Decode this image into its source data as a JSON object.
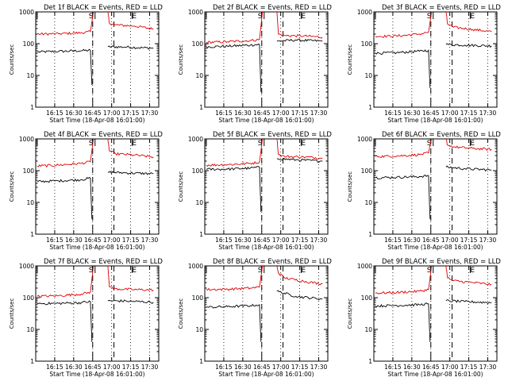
{
  "panel_title_suffix": "BLACK = Events, RED = LLD",
  "xlabel": "Start Time (18-Apr-08 16:01:00)",
  "ylabel": "Counts/sec",
  "marker_start": "S",
  "marker_end": "E",
  "x_tick_labels": [
    "16:15",
    "16:30",
    "16:45",
    "17:00",
    "17:15",
    "17:30"
  ],
  "y_tick_labels": [
    "1",
    "10",
    "100",
    "1000"
  ],
  "colors": {
    "events": "#000000",
    "lld": "#e00000"
  },
  "chart_data": [
    {
      "type": "line",
      "title": "Det 1f BLACK = Events, RED = LLD",
      "y_scale": "log",
      "ylim": [
        1,
        1000
      ],
      "x_tick_minutes": [
        16.25,
        16.5,
        16.75,
        17.0,
        17.25,
        17.5
      ],
      "start_tick": 16.02,
      "s_tick": 16.75,
      "e_tick": 17.3,
      "dashed_lines": [
        16.75,
        17.03
      ],
      "series": [
        {
          "key": "events",
          "segments": [
            [
              [
                16.02,
                55
              ],
              [
                16.3,
                57
              ],
              [
                16.6,
                60
              ],
              [
                16.72,
                62
              ],
              [
                16.74,
                5
              ]
            ],
            [
              [
                16.95,
                80
              ],
              [
                17.2,
                78
              ],
              [
                17.55,
                72
              ]
            ]
          ]
        },
        {
          "key": "lld",
          "segments": [
            [
              [
                16.02,
                200
              ],
              [
                16.3,
                205
              ],
              [
                16.6,
                220
              ],
              [
                16.72,
                240
              ],
              [
                16.76,
                1000
              ]
            ],
            [
              [
                16.95,
                1000
              ],
              [
                16.97,
                450
              ],
              [
                17.05,
                390
              ],
              [
                17.3,
                360
              ],
              [
                17.55,
                290
              ]
            ]
          ]
        }
      ]
    },
    {
      "type": "line",
      "title": "Det 2f BLACK = Events, RED = LLD",
      "y_scale": "log",
      "ylim": [
        1,
        1000
      ],
      "x_tick_minutes": [
        16.25,
        16.5,
        16.75,
        17.0,
        17.25,
        17.5
      ],
      "start_tick": 16.02,
      "s_tick": 16.75,
      "e_tick": 17.3,
      "dashed_lines": [
        16.75,
        17.03
      ],
      "series": [
        {
          "key": "events",
          "segments": [
            [
              [
                16.02,
                80
              ],
              [
                16.3,
                83
              ],
              [
                16.6,
                90
              ],
              [
                16.72,
                95
              ],
              [
                16.74,
                3
              ]
            ],
            [
              [
                16.95,
                120
              ],
              [
                17.2,
                130
              ],
              [
                17.55,
                120
              ]
            ]
          ]
        },
        {
          "key": "lld",
          "segments": [
            [
              [
                16.02,
                110
              ],
              [
                16.3,
                115
              ],
              [
                16.6,
                125
              ],
              [
                16.72,
                135
              ],
              [
                16.76,
                1000
              ]
            ],
            [
              [
                16.95,
                1000
              ],
              [
                16.97,
                200
              ],
              [
                17.05,
                180
              ],
              [
                17.3,
                175
              ],
              [
                17.55,
                160
              ]
            ]
          ]
        }
      ]
    },
    {
      "type": "line",
      "title": "Det 3f BLACK = Events, RED = LLD",
      "y_scale": "log",
      "ylim": [
        1,
        1000
      ],
      "x_tick_minutes": [
        16.25,
        16.5,
        16.75,
        17.0,
        17.25,
        17.5
      ],
      "start_tick": 16.02,
      "s_tick": 16.75,
      "e_tick": 17.3,
      "dashed_lines": [
        16.75,
        17.03
      ],
      "series": [
        {
          "key": "events",
          "segments": [
            [
              [
                16.02,
                50
              ],
              [
                16.3,
                52
              ],
              [
                16.6,
                58
              ],
              [
                16.72,
                62
              ],
              [
                16.74,
                4
              ]
            ],
            [
              [
                16.95,
                95
              ],
              [
                17.2,
                90
              ],
              [
                17.55,
                85
              ]
            ]
          ]
        },
        {
          "key": "lld",
          "segments": [
            [
              [
                16.02,
                170
              ],
              [
                16.3,
                175
              ],
              [
                16.6,
                200
              ],
              [
                16.72,
                230
              ],
              [
                16.76,
                1000
              ]
            ],
            [
              [
                16.95,
                1000
              ],
              [
                16.97,
                420
              ],
              [
                17.05,
                330
              ],
              [
                17.3,
                280
              ],
              [
                17.55,
                240
              ]
            ]
          ]
        }
      ]
    },
    {
      "type": "line",
      "title": "Det 4f BLACK = Events, RED = LLD",
      "y_scale": "log",
      "ylim": [
        1,
        1000
      ],
      "x_tick_minutes": [
        16.25,
        16.5,
        16.75,
        17.0,
        17.25,
        17.5
      ],
      "start_tick": 16.02,
      "s_tick": 16.75,
      "e_tick": 17.3,
      "dashed_lines": [
        16.75,
        17.03
      ],
      "series": [
        {
          "key": "events",
          "segments": [
            [
              [
                16.02,
                45
              ],
              [
                16.3,
                48
              ],
              [
                16.6,
                52
              ],
              [
                16.72,
                58
              ],
              [
                16.74,
                3
              ]
            ],
            [
              [
                16.95,
                90
              ],
              [
                17.2,
                85
              ],
              [
                17.55,
                80
              ]
            ]
          ]
        },
        {
          "key": "lld",
          "segments": [
            [
              [
                16.02,
                140
              ],
              [
                16.3,
                150
              ],
              [
                16.6,
                170
              ],
              [
                16.72,
                190
              ],
              [
                16.76,
                1000
              ]
            ],
            [
              [
                16.95,
                1000
              ],
              [
                16.97,
                420
              ],
              [
                17.05,
                340
              ],
              [
                17.3,
                310
              ],
              [
                17.55,
                270
              ]
            ]
          ]
        }
      ]
    },
    {
      "type": "line",
      "title": "Det 5f BLACK = Events, RED = LLD",
      "y_scale": "log",
      "ylim": [
        1,
        1000
      ],
      "x_tick_minutes": [
        16.25,
        16.5,
        16.75,
        17.0,
        17.25,
        17.5
      ],
      "start_tick": 16.02,
      "s_tick": 16.75,
      "e_tick": 17.3,
      "dashed_lines": [
        16.75,
        17.03
      ],
      "series": [
        {
          "key": "events",
          "segments": [
            [
              [
                16.02,
                110
              ],
              [
                16.3,
                112
              ],
              [
                16.6,
                120
              ],
              [
                16.72,
                128
              ],
              [
                16.74,
                5
              ]
            ],
            [
              [
                16.95,
                240
              ],
              [
                17.2,
                220
              ],
              [
                17.55,
                200
              ]
            ]
          ]
        },
        {
          "key": "lld",
          "segments": [
            [
              [
                16.02,
                150
              ],
              [
                16.3,
                155
              ],
              [
                16.6,
                170
              ],
              [
                16.72,
                185
              ],
              [
                16.76,
                1000
              ]
            ],
            [
              [
                16.95,
                1000
              ],
              [
                16.97,
                320
              ],
              [
                17.05,
                280
              ],
              [
                17.3,
                270
              ],
              [
                17.55,
                250
              ]
            ]
          ]
        }
      ]
    },
    {
      "type": "line",
      "title": "Det 6f BLACK = Events, RED = LLD",
      "y_scale": "log",
      "ylim": [
        1,
        1000
      ],
      "x_tick_minutes": [
        16.25,
        16.5,
        16.75,
        17.0,
        17.25,
        17.5
      ],
      "start_tick": 16.02,
      "s_tick": 16.75,
      "e_tick": 17.3,
      "dashed_lines": [
        16.75,
        17.03
      ],
      "series": [
        {
          "key": "events",
          "segments": [
            [
              [
                16.02,
                60
              ],
              [
                16.3,
                62
              ],
              [
                16.6,
                65
              ],
              [
                16.72,
                70
              ],
              [
                16.74,
                3
              ]
            ],
            [
              [
                16.95,
                130
              ],
              [
                17.2,
                115
              ],
              [
                17.55,
                105
              ]
            ]
          ]
        },
        {
          "key": "lld",
          "segments": [
            [
              [
                16.02,
                280
              ],
              [
                16.3,
                290
              ],
              [
                16.6,
                320
              ],
              [
                16.72,
                360
              ],
              [
                16.76,
                1000
              ]
            ],
            [
              [
                16.95,
                1000
              ],
              [
                16.97,
                640
              ],
              [
                17.05,
                560
              ],
              [
                17.3,
                500
              ],
              [
                17.55,
                470
              ]
            ]
          ]
        }
      ]
    },
    {
      "type": "line",
      "title": "Det 7f BLACK = Events, RED = LLD",
      "y_scale": "log",
      "ylim": [
        1,
        1000
      ],
      "x_tick_minutes": [
        16.25,
        16.5,
        16.75,
        17.0,
        17.25,
        17.5
      ],
      "start_tick": 16.02,
      "s_tick": 16.75,
      "e_tick": 17.3,
      "dashed_lines": [
        16.75,
        17.03
      ],
      "series": [
        {
          "key": "events",
          "segments": [
            [
              [
                16.02,
                65
              ],
              [
                16.3,
                66
              ],
              [
                16.6,
                70
              ],
              [
                16.72,
                75
              ],
              [
                16.74,
                4
              ]
            ],
            [
              [
                16.95,
                80
              ],
              [
                17.2,
                78
              ],
              [
                17.55,
                72
              ]
            ]
          ]
        },
        {
          "key": "lld",
          "segments": [
            [
              [
                16.02,
                110
              ],
              [
                16.3,
                115
              ],
              [
                16.6,
                130
              ],
              [
                16.72,
                150
              ],
              [
                16.76,
                1000
              ]
            ],
            [
              [
                16.95,
                1000
              ],
              [
                16.97,
                220
              ],
              [
                17.05,
                190
              ],
              [
                17.3,
                180
              ],
              [
                17.55,
                175
              ]
            ]
          ]
        }
      ]
    },
    {
      "type": "line",
      "title": "Det 8f BLACK = Events, RED = LLD",
      "y_scale": "log",
      "ylim": [
        1,
        1000
      ],
      "x_tick_minutes": [
        16.25,
        16.5,
        16.75,
        17.0,
        17.25,
        17.5
      ],
      "start_tick": 16.02,
      "s_tick": 16.75,
      "e_tick": 17.3,
      "dashed_lines": [
        16.75,
        17.03
      ],
      "series": [
        {
          "key": "events",
          "segments": [
            [
              [
                16.02,
                50
              ],
              [
                16.3,
                52
              ],
              [
                16.6,
                56
              ],
              [
                16.72,
                60
              ],
              [
                16.74,
                4
              ]
            ],
            [
              [
                16.95,
                160
              ],
              [
                17.2,
                110
              ],
              [
                17.55,
                90
              ]
            ]
          ]
        },
        {
          "key": "lld",
          "segments": [
            [
              [
                16.02,
                180
              ],
              [
                16.3,
                185
              ],
              [
                16.6,
                200
              ],
              [
                16.72,
                215
              ],
              [
                16.76,
                1000
              ]
            ],
            [
              [
                16.95,
                1000
              ],
              [
                16.97,
                600
              ],
              [
                17.05,
                420
              ],
              [
                17.3,
                330
              ],
              [
                17.55,
                270
              ]
            ]
          ]
        }
      ]
    },
    {
      "type": "line",
      "title": "Det 9f BLACK = Events, RED = LLD",
      "y_scale": "log",
      "ylim": [
        1,
        1000
      ],
      "x_tick_minutes": [
        16.25,
        16.5,
        16.75,
        17.0,
        17.25,
        17.5
      ],
      "start_tick": 16.02,
      "s_tick": 16.75,
      "e_tick": 17.3,
      "dashed_lines": [
        16.75,
        17.03
      ],
      "series": [
        {
          "key": "events",
          "segments": [
            [
              [
                16.02,
                55
              ],
              [
                16.3,
                57
              ],
              [
                16.6,
                60
              ],
              [
                16.72,
                64
              ],
              [
                16.74,
                4
              ]
            ],
            [
              [
                16.95,
                80
              ],
              [
                17.2,
                75
              ],
              [
                17.55,
                70
              ]
            ]
          ]
        },
        {
          "key": "lld",
          "segments": [
            [
              [
                16.02,
                140
              ],
              [
                16.3,
                145
              ],
              [
                16.6,
                160
              ],
              [
                16.72,
                180
              ],
              [
                16.76,
                1000
              ]
            ],
            [
              [
                16.95,
                1000
              ],
              [
                16.97,
                420
              ],
              [
                17.05,
                340
              ],
              [
                17.3,
                300
              ],
              [
                17.55,
                260
              ]
            ]
          ]
        }
      ]
    }
  ]
}
